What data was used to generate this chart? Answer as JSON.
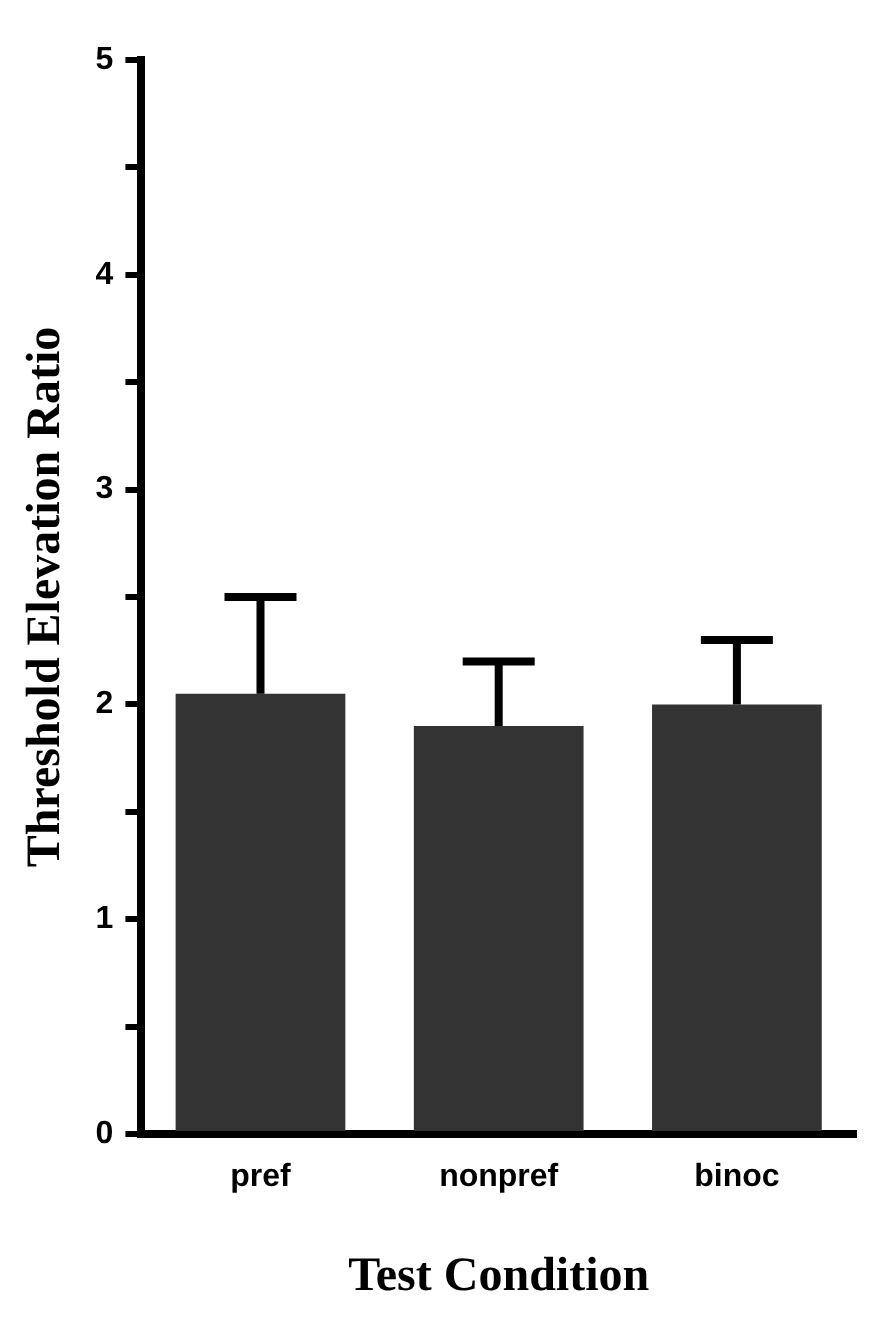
{
  "chart_data": {
    "type": "bar",
    "xlabel": "Test Condition",
    "ylabel": "Threshold Elevation Ratio",
    "categories": [
      "pref",
      "nonpref",
      "binoc"
    ],
    "values": [
      2.05,
      1.9,
      2.0
    ],
    "color": "#333333",
    "errors": [
      [
        2.05,
        2.5
      ],
      [
        1.9,
        2.2
      ],
      [
        2.0,
        2.3
      ]
    ],
    "ylim": [
      0,
      5
    ],
    "yticks": [
      0,
      {
        "value": 0.5,
        "label": null
      },
      1,
      {
        "value": 1.5,
        "label": null
      },
      2,
      {
        "value": 2.5,
        "label": null
      },
      3,
      {
        "value": 3.5,
        "label": null
      },
      4,
      {
        "value": 4.5,
        "label": null
      },
      5
    ],
    "grid": false,
    "legend": false
  }
}
